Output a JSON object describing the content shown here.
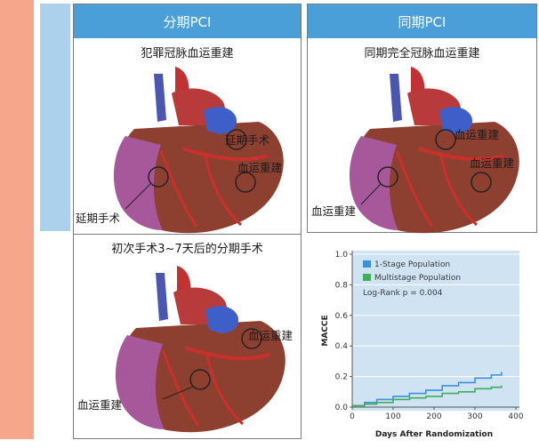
{
  "panel_left": {
    "header": "分期PCI",
    "caption_top": "犯罪冠脉血运重建",
    "label_delayed_top": "延期手术",
    "label_revasc_top": "血运重建",
    "label_delayed_left": "延期手术",
    "caption_bottom": "初次手术3~7天后的分期手术",
    "label_revasc_right": "血运重建",
    "label_revasc_left": "血运重建"
  },
  "panel_right": {
    "header": "同期PCI",
    "caption": "同期完全冠脉血运重建",
    "label_revasc_1": "血运重建",
    "label_revasc_2": "血运重建",
    "label_revasc_3": "血运重建"
  },
  "chart_data": {
    "type": "line",
    "xlabel": "Days After Randomization",
    "ylabel": "MACCE",
    "xlim": [
      0,
      400
    ],
    "ylim": [
      0,
      1.0
    ],
    "xticks": [
      "0",
      "100",
      "200",
      "300",
      "400"
    ],
    "yticks": [
      "0.0",
      "0.2",
      "0.4",
      "0.6",
      "0.8",
      "1.0"
    ],
    "annotation": "Log-Rank p = 0.004",
    "series": [
      {
        "name": "1-Stage Population",
        "color": "#3c8fd8",
        "x": [
          0,
          30,
          60,
          100,
          140,
          180,
          220,
          260,
          300,
          340,
          365
        ],
        "y": [
          0.01,
          0.03,
          0.05,
          0.07,
          0.09,
          0.11,
          0.14,
          0.16,
          0.19,
          0.21,
          0.23
        ]
      },
      {
        "name": "Multistage Population",
        "color": "#3fae5a",
        "x": [
          0,
          30,
          60,
          100,
          140,
          180,
          220,
          260,
          300,
          340,
          365
        ],
        "y": [
          0.01,
          0.02,
          0.03,
          0.05,
          0.06,
          0.07,
          0.09,
          0.1,
          0.12,
          0.13,
          0.14
        ]
      }
    ]
  }
}
